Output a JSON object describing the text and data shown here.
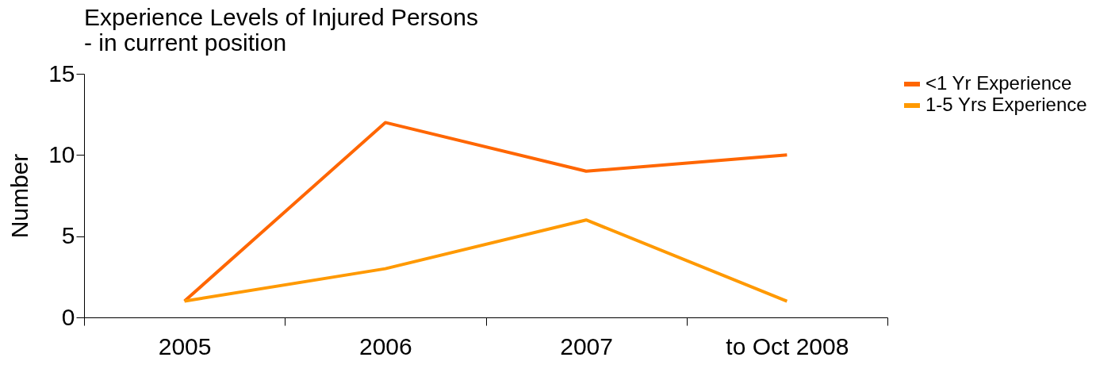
{
  "chart_data": {
    "type": "line",
    "title": "Experience Levels of Injured Persons",
    "subtitle": "- in current position",
    "ylabel": "Number",
    "categories": [
      "2005",
      "2006",
      "2007",
      "to Oct 2008"
    ],
    "series": [
      {
        "name": "<1 Yr Experience",
        "color": "#ff6600",
        "values": [
          1,
          12,
          9,
          10
        ]
      },
      {
        "name": "1-5 Yrs Experience",
        "color": "#ff9900",
        "values": [
          1,
          3,
          6,
          1
        ]
      }
    ],
    "ylim": [
      0,
      15
    ],
    "yticks": [
      0,
      5,
      10,
      15
    ],
    "grid": false,
    "legend": "right",
    "marker": "none",
    "line_style": "solid"
  }
}
